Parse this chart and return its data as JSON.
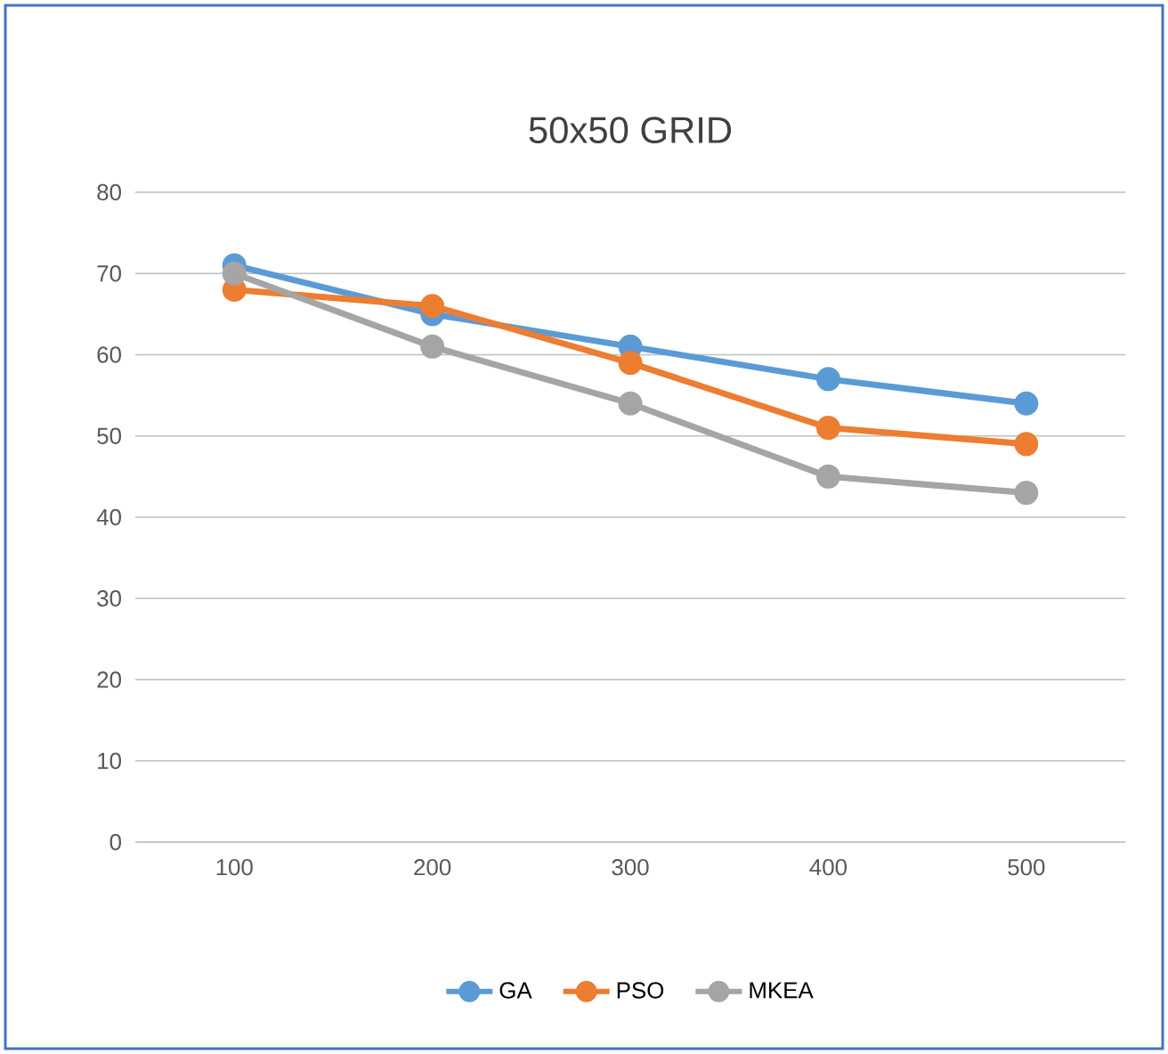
{
  "chart_data": {
    "type": "line",
    "title": "50x50 GRID",
    "categories": [
      "100",
      "200",
      "300",
      "400",
      "500"
    ],
    "series": [
      {
        "name": "GA",
        "color": "#5b9bd5",
        "values": [
          71,
          65,
          61,
          57,
          54
        ]
      },
      {
        "name": "PSO",
        "color": "#ed7d31",
        "values": [
          68,
          66,
          59,
          51,
          49
        ]
      },
      {
        "name": "MKEA",
        "color": "#a5a5a5",
        "values": [
          70,
          61,
          54,
          45,
          43
        ]
      }
    ],
    "ylim": [
      0,
      80
    ],
    "yticks": [
      0,
      10,
      20,
      30,
      40,
      50,
      60,
      70,
      80
    ],
    "grid": "y",
    "legend": "bottom",
    "marker": "circle",
    "line_style": "solid"
  }
}
